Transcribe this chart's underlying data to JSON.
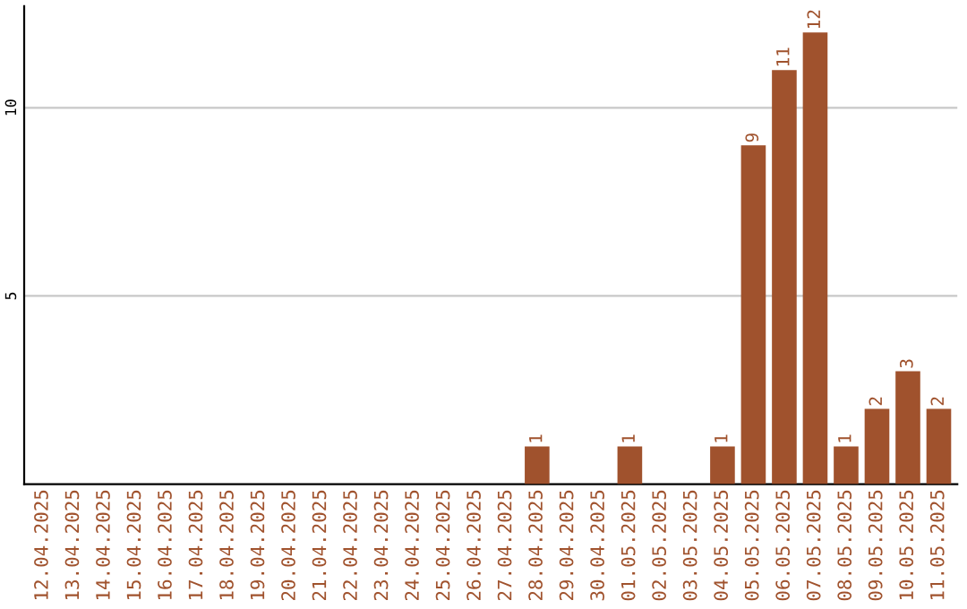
{
  "chart_data": {
    "type": "bar",
    "categories": [
      "12.04.2025",
      "13.04.2025",
      "14.04.2025",
      "15.04.2025",
      "16.04.2025",
      "17.04.2025",
      "18.04.2025",
      "19.04.2025",
      "20.04.2025",
      "21.04.2025",
      "22.04.2025",
      "23.04.2025",
      "24.04.2025",
      "25.04.2025",
      "26.04.2025",
      "27.04.2025",
      "28.04.2025",
      "29.04.2025",
      "30.04.2025",
      "01.05.2025",
      "02.05.2025",
      "03.05.2025",
      "04.05.2025",
      "05.05.2025",
      "06.05.2025",
      "07.05.2025",
      "08.05.2025",
      "09.05.2025",
      "10.05.2025",
      "11.05.2025"
    ],
    "values": [
      0,
      0,
      0,
      0,
      0,
      0,
      0,
      0,
      0,
      0,
      0,
      0,
      0,
      0,
      0,
      0,
      1,
      0,
      0,
      1,
      0,
      0,
      1,
      9,
      11,
      12,
      1,
      2,
      3,
      2
    ],
    "value_labels": [
      null,
      null,
      null,
      null,
      null,
      null,
      null,
      null,
      null,
      null,
      null,
      null,
      null,
      null,
      null,
      null,
      "1",
      null,
      null,
      "1",
      null,
      null,
      "1",
      "9",
      "11",
      "12",
      "1",
      "2",
      "3",
      "2"
    ],
    "color": "#a0522d",
    "ylim": [
      0,
      12.7
    ],
    "yticks": [
      5,
      10
    ],
    "grid": "y"
  }
}
